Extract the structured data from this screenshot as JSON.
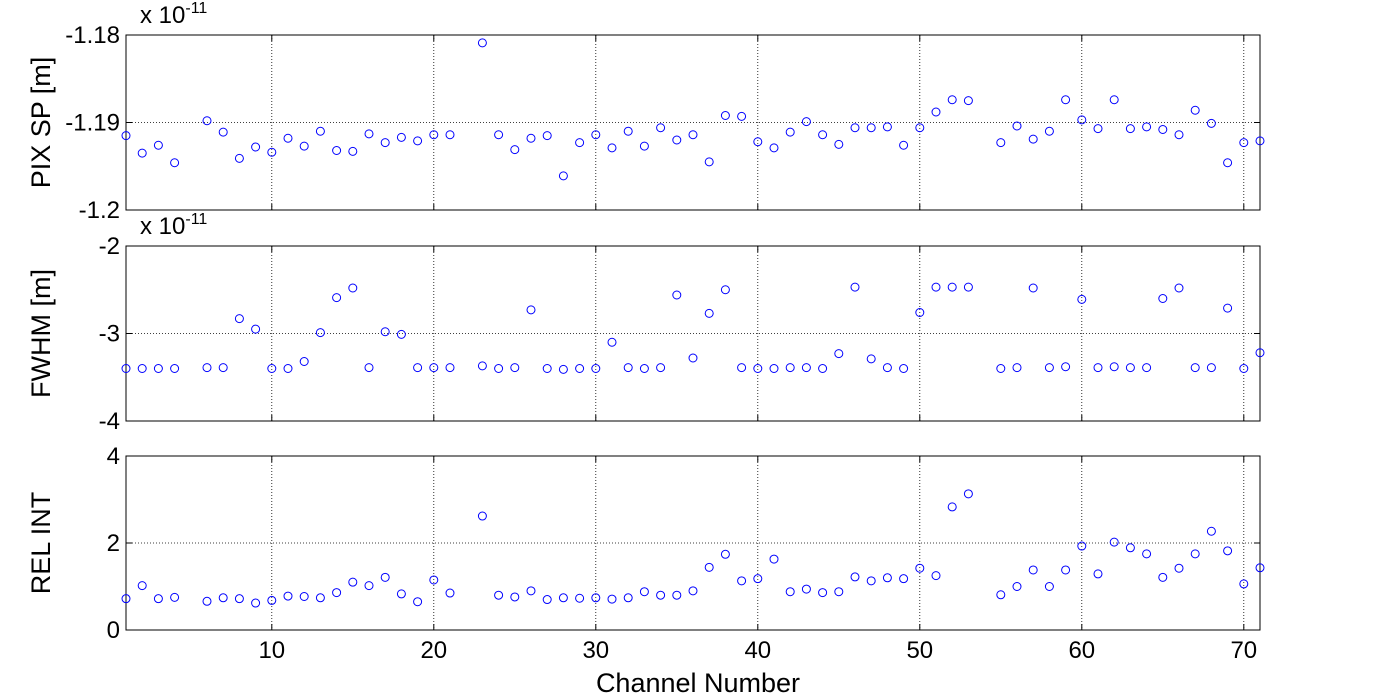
{
  "chart_data": [
    {
      "type": "scatter",
      "ylabel": "PIX SP [m]",
      "exponent_label": {
        "base": "x 10",
        "power": "-11"
      },
      "xlim": [
        1,
        71
      ],
      "ylim": [
        -1.2,
        -1.18
      ],
      "yticks": [
        -1.2,
        -1.19,
        -1.18
      ],
      "ytick_labels": [
        "-1.2",
        "-1.19",
        "-1.18"
      ],
      "grid": true,
      "marker_color": "#0000ff",
      "x": [
        1,
        2,
        3,
        4,
        6,
        7,
        8,
        9,
        10,
        11,
        12,
        13,
        14,
        15,
        16,
        17,
        18,
        19,
        20,
        21,
        23,
        24,
        25,
        26,
        27,
        28,
        29,
        30,
        31,
        32,
        33,
        34,
        35,
        36,
        37,
        38,
        39,
        40,
        41,
        42,
        43,
        44,
        45,
        46,
        47,
        48,
        49,
        50,
        51,
        52,
        53,
        55,
        56,
        57,
        58,
        59,
        60,
        61,
        62,
        63,
        64,
        65,
        66,
        67,
        68,
        69,
        70,
        71
      ],
      "y": [
        -1.1915,
        -1.1935,
        -1.1926,
        -1.1946,
        -1.1898,
        -1.1911,
        -1.1941,
        -1.1928,
        -1.1934,
        -1.1918,
        -1.1927,
        -1.191,
        -1.1932,
        -1.1933,
        -1.1913,
        -1.1923,
        -1.1917,
        -1.1921,
        -1.1914,
        -1.1914,
        -1.1809,
        -1.1914,
        -1.1931,
        -1.1918,
        -1.1915,
        -1.1961,
        -1.1923,
        -1.1914,
        -1.1929,
        -1.191,
        -1.1927,
        -1.1906,
        -1.192,
        -1.1914,
        -1.1945,
        -1.1892,
        -1.1893,
        -1.1922,
        -1.1929,
        -1.1911,
        -1.1899,
        -1.1914,
        -1.1925,
        -1.1906,
        -1.1906,
        -1.1905,
        -1.1926,
        -1.1906,
        -1.1888,
        -1.1874,
        -1.1875,
        -1.1923,
        -1.1904,
        -1.1919,
        -1.191,
        -1.1874,
        -1.1897,
        -1.1907,
        -1.1874,
        -1.1907,
        -1.1905,
        -1.1908,
        -1.1914,
        -1.1886,
        -1.1901,
        -1.1946,
        -1.1923,
        -1.1921
      ]
    },
    {
      "type": "scatter",
      "ylabel": "FWHM [m]",
      "exponent_label": {
        "base": "x 10",
        "power": "-11"
      },
      "xlim": [
        1,
        71
      ],
      "ylim": [
        -4,
        -2
      ],
      "yticks": [
        -4,
        -3,
        -2
      ],
      "ytick_labels": [
        "-4",
        "-3",
        "-2"
      ],
      "grid": true,
      "marker_color": "#0000ff",
      "x": [
        1,
        2,
        3,
        4,
        6,
        7,
        8,
        9,
        10,
        11,
        12,
        13,
        14,
        15,
        16,
        17,
        18,
        19,
        20,
        21,
        23,
        24,
        25,
        26,
        27,
        28,
        29,
        30,
        31,
        32,
        33,
        34,
        35,
        36,
        37,
        38,
        39,
        40,
        41,
        42,
        43,
        44,
        45,
        46,
        47,
        48,
        49,
        50,
        51,
        52,
        53,
        55,
        56,
        57,
        58,
        59,
        60,
        61,
        62,
        63,
        64,
        65,
        66,
        67,
        68,
        69,
        70,
        71
      ],
      "y": [
        -3.4,
        -3.4,
        -3.4,
        -3.4,
        -3.39,
        -3.39,
        -2.83,
        -2.95,
        -3.4,
        -3.4,
        -3.32,
        -2.99,
        -2.59,
        -2.48,
        -3.39,
        -2.98,
        -3.01,
        -3.39,
        -3.39,
        -3.39,
        -3.37,
        -3.4,
        -3.39,
        -2.73,
        -3.4,
        -3.41,
        -3.4,
        -3.4,
        -3.1,
        -3.39,
        -3.4,
        -3.39,
        -2.56,
        -3.28,
        -2.77,
        -2.5,
        -3.39,
        -3.4,
        -3.4,
        -3.39,
        -3.39,
        -3.4,
        -3.23,
        -2.47,
        -3.29,
        -3.39,
        -3.4,
        -2.76,
        -2.47,
        -2.47,
        -2.47,
        -3.4,
        -3.39,
        -2.48,
        -3.39,
        -3.38,
        -2.61,
        -3.39,
        -3.38,
        -3.39,
        -3.39,
        -2.6,
        -2.48,
        -3.39,
        -3.39,
        -2.71,
        -3.4,
        -3.22
      ]
    },
    {
      "type": "scatter",
      "ylabel": "REL INT",
      "xlabel": "Channel Number",
      "xlim": [
        1,
        71
      ],
      "ylim": [
        0,
        4
      ],
      "yticks": [
        0,
        2,
        4
      ],
      "ytick_labels": [
        "0",
        "2",
        "4"
      ],
      "grid": true,
      "marker_color": "#0000ff",
      "x": [
        1,
        2,
        3,
        4,
        6,
        7,
        8,
        9,
        10,
        11,
        12,
        13,
        14,
        15,
        16,
        17,
        18,
        19,
        20,
        21,
        23,
        24,
        25,
        26,
        27,
        28,
        29,
        30,
        31,
        32,
        33,
        34,
        35,
        36,
        37,
        38,
        39,
        40,
        41,
        42,
        43,
        44,
        45,
        46,
        47,
        48,
        49,
        50,
        51,
        52,
        53,
        55,
        56,
        57,
        58,
        59,
        60,
        61,
        62,
        63,
        64,
        65,
        66,
        67,
        68,
        69,
        70,
        71
      ],
      "y": [
        0.72,
        1.02,
        0.72,
        0.75,
        0.66,
        0.74,
        0.72,
        0.62,
        0.68,
        0.78,
        0.77,
        0.74,
        0.86,
        1.1,
        1.02,
        1.21,
        0.83,
        0.65,
        1.15,
        0.85,
        2.62,
        0.8,
        0.76,
        0.9,
        0.7,
        0.74,
        0.73,
        0.74,
        0.71,
        0.74,
        0.88,
        0.8,
        0.8,
        0.9,
        1.44,
        1.74,
        1.13,
        1.18,
        1.63,
        0.88,
        0.94,
        0.86,
        0.88,
        1.22,
        1.13,
        1.2,
        1.18,
        1.42,
        1.25,
        2.83,
        3.13,
        0.81,
        1.0,
        1.38,
        1.0,
        1.38,
        1.93,
        1.29,
        2.02,
        1.89,
        1.75,
        1.21,
        1.42,
        1.75,
        2.27,
        1.82,
        1.06,
        1.43
      ]
    }
  ],
  "xticks": [
    10,
    20,
    30,
    40,
    50,
    60,
    70
  ],
  "xtick_labels": [
    "10",
    "20",
    "30",
    "40",
    "50",
    "60",
    "70"
  ]
}
